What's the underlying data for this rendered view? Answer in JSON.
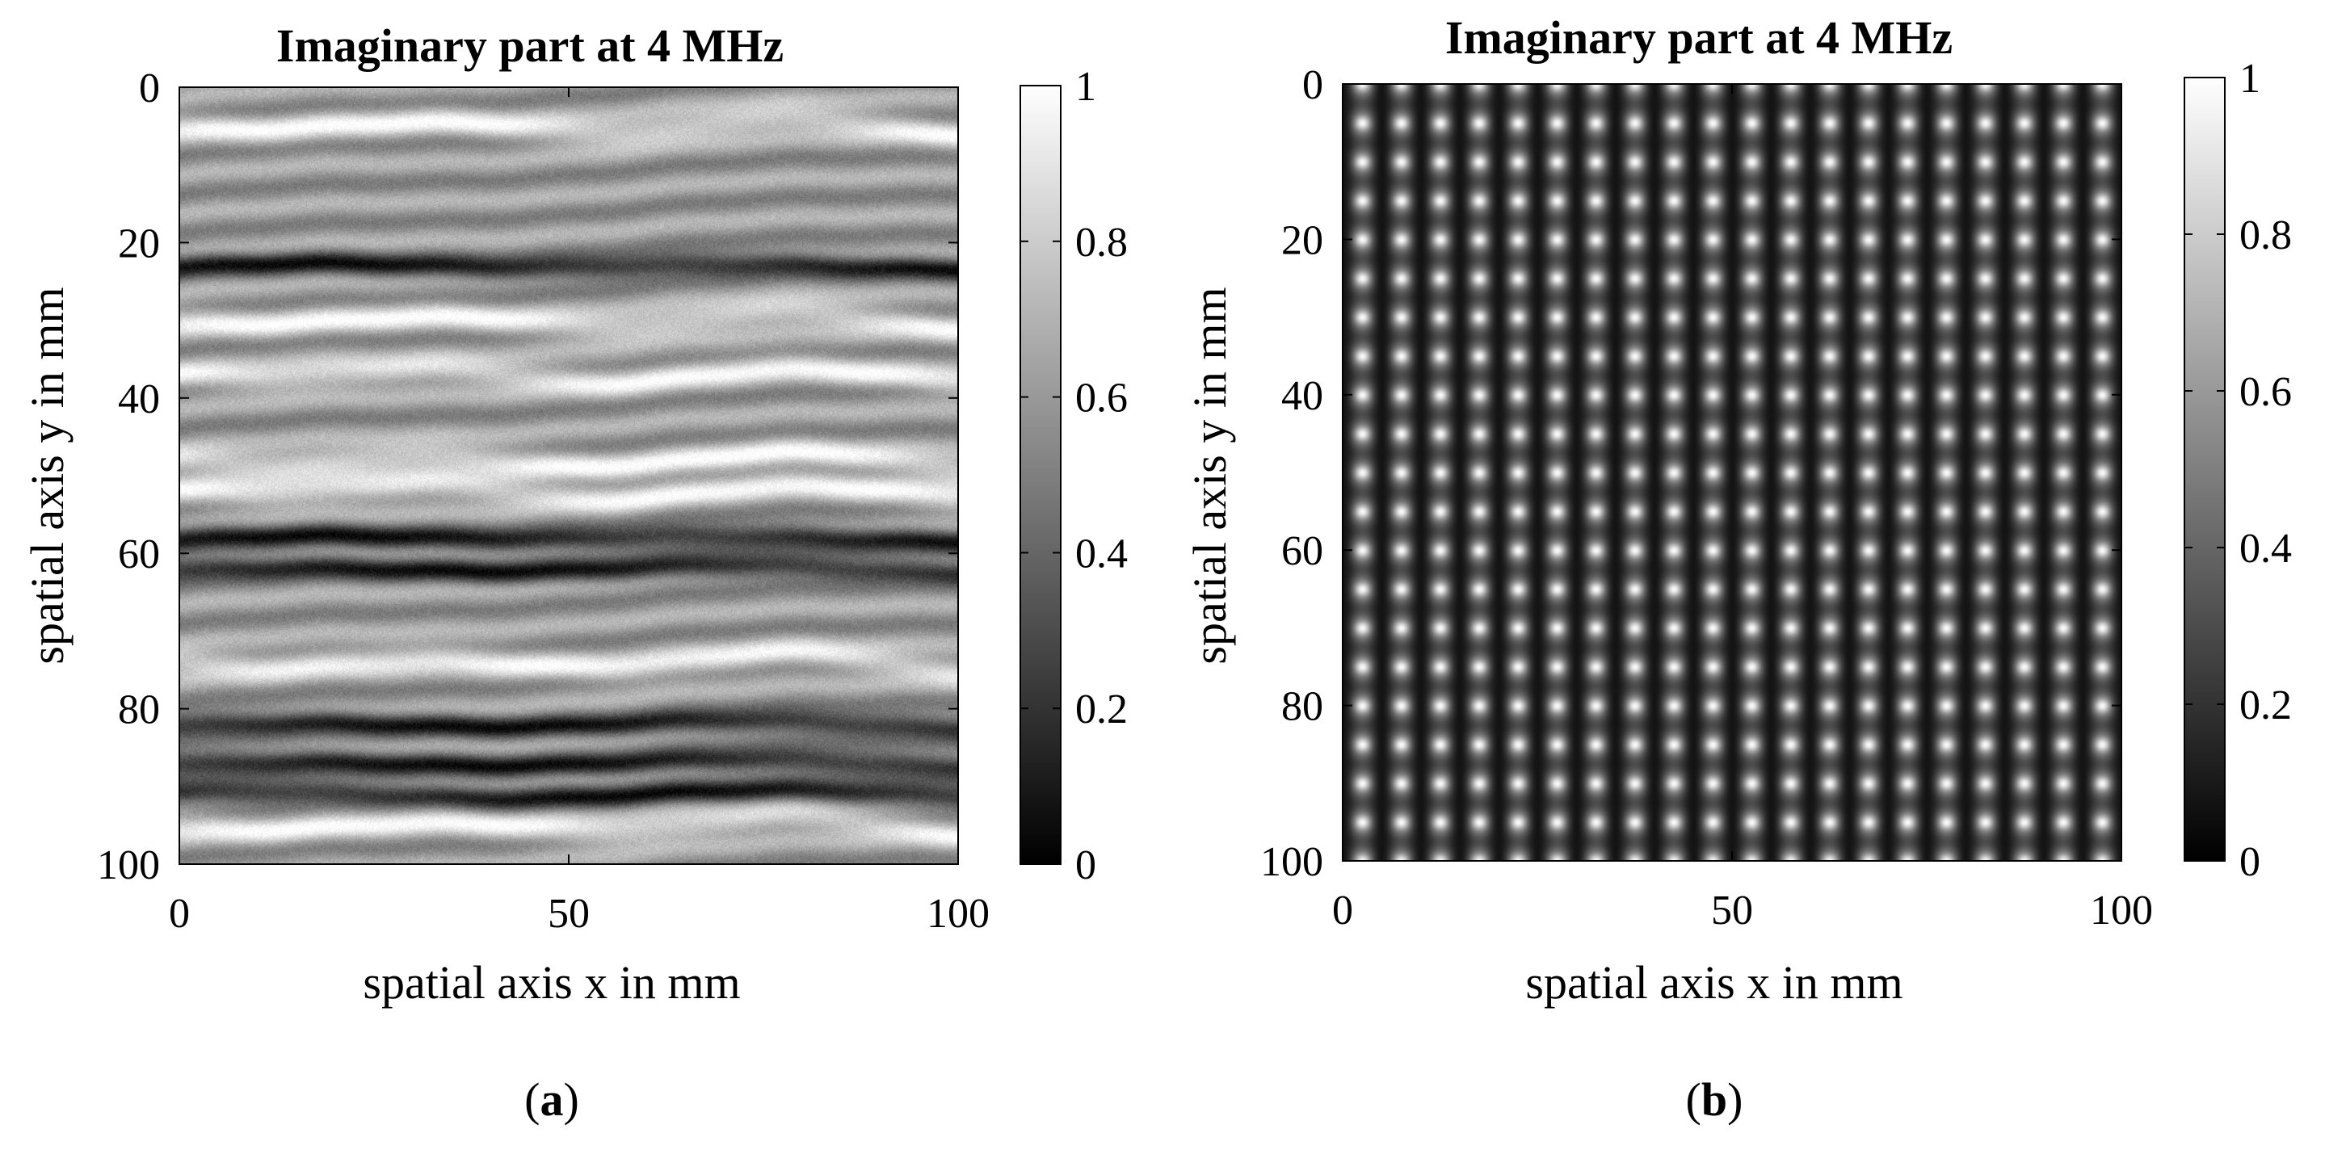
{
  "chart_data": [
    {
      "type": "heatmap",
      "panel_label": "a",
      "title": "Imaginary part at 4 MHz",
      "xlabel": "spatial axis x in mm",
      "ylabel": "spatial axis y in mm",
      "xlim": [
        0,
        100
      ],
      "ylim": [
        0,
        100
      ],
      "y_reversed": true,
      "xticks": [
        "0",
        "50",
        "100"
      ],
      "yticks": [
        "0",
        "20",
        "40",
        "60",
        "80",
        "100"
      ],
      "colorbar": {
        "colormap": "gray",
        "range": [
          0,
          1
        ],
        "ticks": [
          "0",
          "0.2",
          "0.4",
          "0.6",
          "0.8",
          "1"
        ]
      },
      "pattern": "measured",
      "description_of_field": {
        "dark_band_y_mm": [
          23,
          58,
          62,
          82,
          87,
          91
        ],
        "bright_band_y_mm": [
          5,
          30,
          37,
          48,
          52,
          74,
          95
        ]
      }
    },
    {
      "type": "heatmap",
      "panel_label": "b",
      "title": "Imaginary part at 4 MHz",
      "xlabel": "spatial axis x in mm",
      "ylabel": "spatial axis y in mm",
      "xlim": [
        0,
        100
      ],
      "ylim": [
        0,
        100
      ],
      "y_reversed": true,
      "xticks": [
        "0",
        "50",
        "100"
      ],
      "yticks": [
        "0",
        "20",
        "40",
        "60",
        "80",
        "100"
      ],
      "colorbar": {
        "colormap": "gray",
        "range": [
          0,
          1
        ],
        "ticks": [
          "0",
          "0.2",
          "0.4",
          "0.6",
          "0.8",
          "1"
        ]
      },
      "pattern": "simulated",
      "description_of_field": {
        "columns": 20,
        "rows": 20
      }
    }
  ]
}
